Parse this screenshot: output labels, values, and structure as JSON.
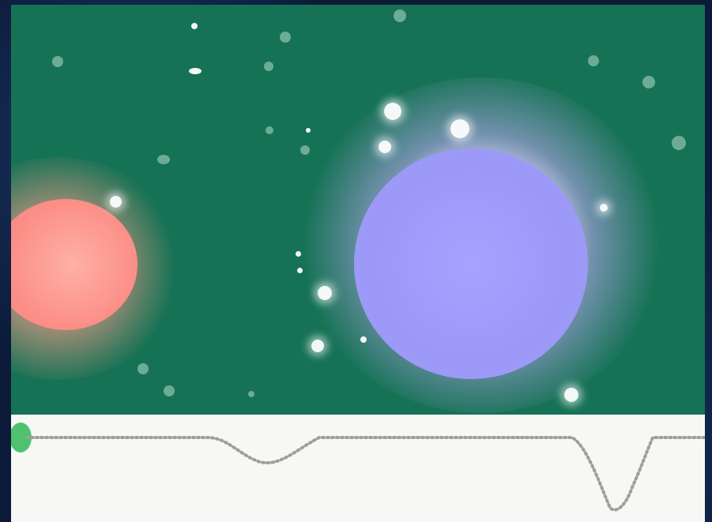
{
  "scene": {
    "background_color": "#167255",
    "red_star_color": "#fb8d86",
    "blue_star_color": "#a19cf3",
    "glow_color": "#d7d1ff"
  },
  "light_curve": {
    "background_color": "#f7f8f6",
    "point_color": "#9aa19a",
    "marker_color": "#4fc26d"
  }
}
